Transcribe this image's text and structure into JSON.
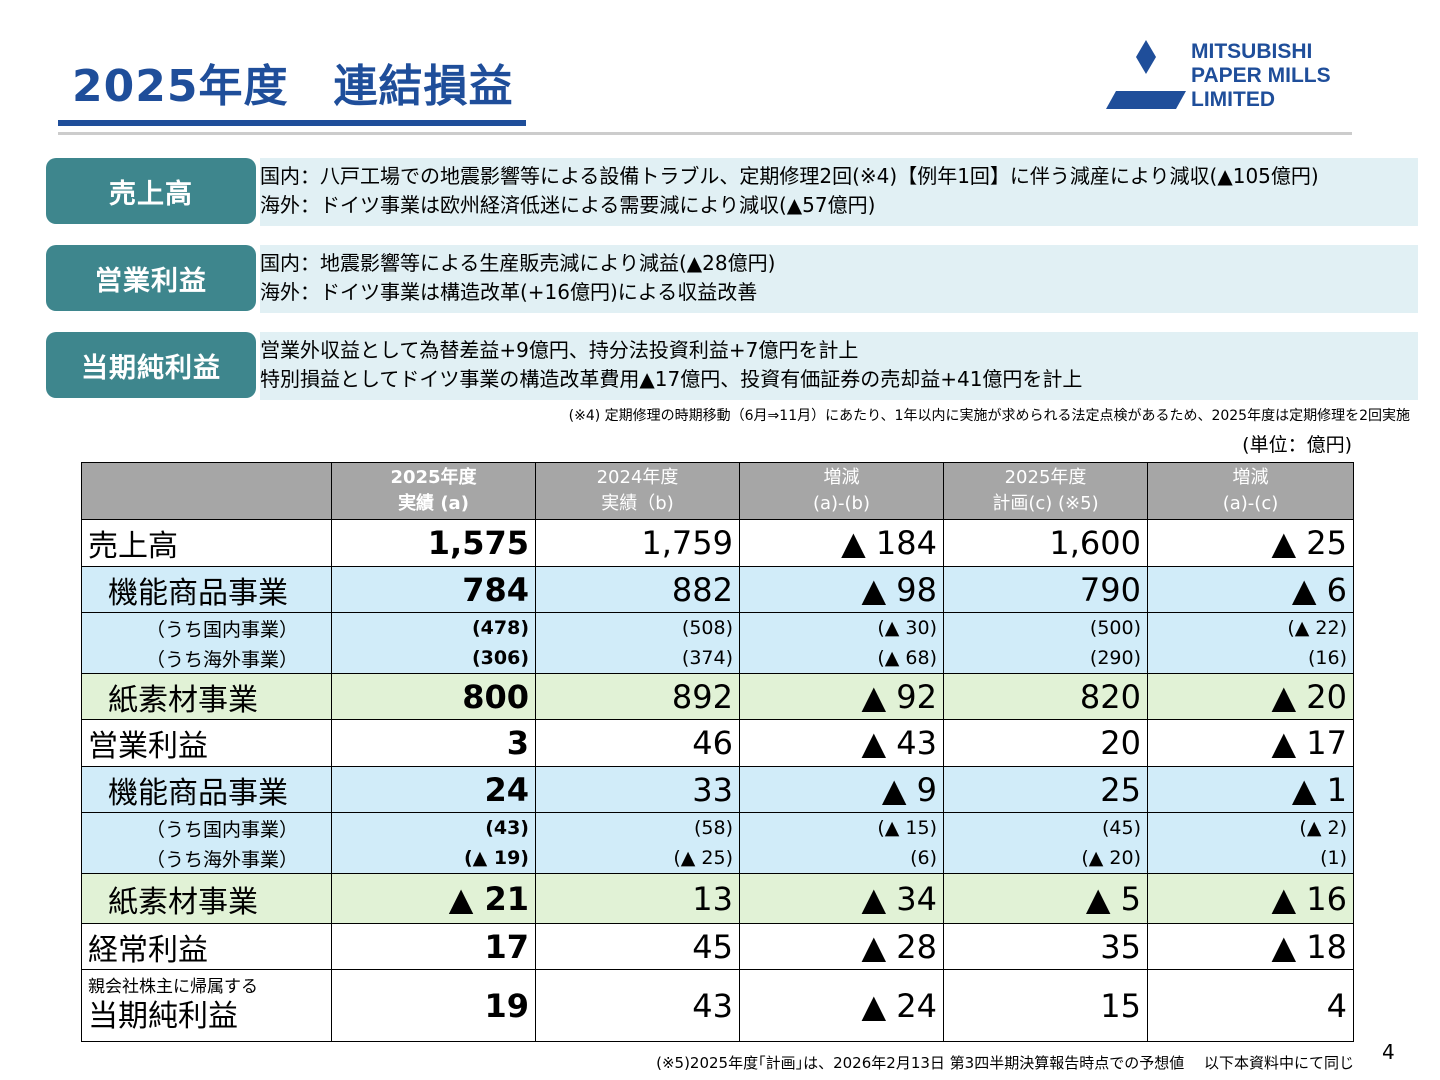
{
  "title": "2025年度　連結損益",
  "logo": {
    "line1": "MITSUBISHI",
    "line2": "PAPER MILLS",
    "line3": "LIMITED"
  },
  "sections": [
    {
      "label": "売上高",
      "lines": [
        "国内：八戸工場での地震影響等による設備トラブル、定期修理2回(※4)【例年1回】に伴う減産により減収(▲105億円)",
        "海外：ドイツ事業は欧州経済低迷による需要減により減収(▲57億円)"
      ]
    },
    {
      "label": "営業利益",
      "lines": [
        "国内：地震影響等による生産販売減により減益(▲28億円)",
        "海外：ドイツ事業は構造改革(+16億円)による収益改善"
      ]
    },
    {
      "label": "当期純利益",
      "lines": [
        "営業外収益として為替差益+9億円、持分法投資利益+7億円を計上",
        "特別損益としてドイツ事業の構造改革費用▲17億円、投資有価証券の売却益+41億円を計上"
      ]
    }
  ],
  "note4": "(※4) 定期修理の時期移動（6月⇒11月）にあたり、1年以内に実施が求められる法定点検があるため、2025年度は定期修理を2回実施",
  "unit": "(単位：億円)",
  "table": {
    "headers": [
      [
        "2025年度",
        "実績 (a)"
      ],
      [
        "2024年度",
        "実績（b)"
      ],
      [
        "増減",
        "(a)-(b)"
      ],
      [
        "2025年度",
        "計画(c) (※5)"
      ],
      [
        "増減",
        "(a)-(c)"
      ]
    ],
    "rows": {
      "r1": {
        "label": "売上高",
        "v": [
          "1,575",
          "1,759",
          "▲ 184",
          "1,600",
          "▲ 25"
        ]
      },
      "r2": {
        "label": "機能商品事業",
        "v": [
          "784",
          "882",
          "▲ 98",
          "790",
          "▲ 6"
        ]
      },
      "r3": {
        "label": "（うち国内事業）",
        "v": [
          "(478)",
          "(508)",
          "(▲ 30)",
          "(500)",
          "(▲ 22)"
        ]
      },
      "r4": {
        "label": "（うち海外事業）",
        "v": [
          "(306)",
          "(374)",
          "(▲ 68)",
          "(290)",
          "(16)"
        ]
      },
      "r5": {
        "label": "紙素材事業",
        "v": [
          "800",
          "892",
          "▲ 92",
          "820",
          "▲ 20"
        ]
      },
      "r6": {
        "label": "営業利益",
        "v": [
          "3",
          "46",
          "▲ 43",
          "20",
          "▲ 17"
        ]
      },
      "r7": {
        "label": "機能商品事業",
        "v": [
          "24",
          "33",
          "▲ 9",
          "25",
          "▲ 1"
        ]
      },
      "r8": {
        "label": "（うち国内事業）",
        "v": [
          "(43)",
          "(58)",
          "(▲ 15)",
          "(45)",
          "(▲ 2)"
        ]
      },
      "r9": {
        "label": "（うち海外事業）",
        "v": [
          "(▲ 19)",
          "(▲ 25)",
          "(6)",
          "(▲ 20)",
          "(1)"
        ]
      },
      "r10": {
        "label": "紙素材事業",
        "v": [
          "▲ 21",
          "13",
          "▲ 34",
          "▲ 5",
          "▲ 16"
        ]
      },
      "r11": {
        "label": "経常利益",
        "v": [
          "17",
          "45",
          "▲ 28",
          "35",
          "▲ 18"
        ]
      },
      "r12": {
        "label_small": "親会社株主に帰属する",
        "label": "当期純利益",
        "v": [
          "19",
          "43",
          "▲ 24",
          "15",
          "4"
        ]
      }
    }
  },
  "footnote": "(※5)2025年度｢計画｣は、2026年2月13日 第3四半期決算報告時点での予想値　 以下本資料中にて同じ",
  "page_number": "4"
}
